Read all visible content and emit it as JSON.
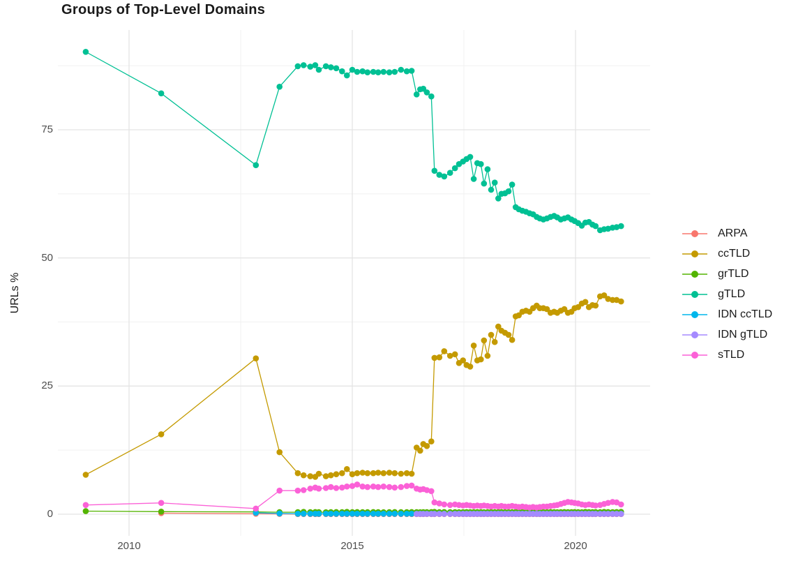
{
  "title": "Groups of Top-Level Domains",
  "axes": {
    "x": {
      "ticks": [
        {
          "value": 2010,
          "label": "2010"
        },
        {
          "value": 2015,
          "label": "2015"
        },
        {
          "value": 2020,
          "label": "2020"
        }
      ],
      "minor": [
        2012.5,
        2017.5
      ]
    },
    "y": {
      "label": "URLs %",
      "ticks": [
        {
          "value": 0,
          "label": "0"
        },
        {
          "value": 25,
          "label": "25"
        },
        {
          "value": 50,
          "label": "50"
        },
        {
          "value": 75,
          "label": "75"
        }
      ],
      "minor": [
        12.5,
        37.5,
        62.5,
        87.5
      ]
    }
  },
  "style": {
    "grid_major": "#e4e4e4",
    "grid_minor": "#f1f1f1",
    "tick_text": "#4d4d4d",
    "title_text": "#1a1a1a"
  },
  "chart_data": {
    "type": "line",
    "title": "Groups of Top-Level Domains",
    "xlabel": "",
    "ylabel": "URLs %",
    "xlim": [
      2008.4,
      2021.7
    ],
    "ylim": [
      0,
      94
    ],
    "grid": true,
    "legend_position": "right",
    "x_dense": [
      2013.78,
      2013.91,
      2014.06,
      2014.17,
      2014.25,
      2014.41,
      2014.52,
      2014.64,
      2014.77,
      2014.88,
      2015.0,
      2015.11,
      2015.23,
      2015.34,
      2015.47,
      2015.58,
      2015.7,
      2015.83,
      2015.95,
      2016.09,
      2016.22,
      2016.33,
      2016.44,
      2016.52,
      2016.59,
      2016.67,
      2016.77,
      2016.84,
      2016.95,
      2017.06,
      2017.19,
      2017.3,
      2017.39,
      2017.48,
      2017.56,
      2017.64,
      2017.72,
      2017.8,
      2017.88,
      2017.95,
      2018.03,
      2018.11,
      2018.19,
      2018.27,
      2018.34,
      2018.42,
      2018.5,
      2018.58,
      2018.66,
      2018.73,
      2018.81,
      2018.89,
      2018.97,
      2019.05,
      2019.13,
      2019.2,
      2019.28,
      2019.36,
      2019.44,
      2019.52,
      2019.59,
      2019.67,
      2019.75,
      2019.83,
      2019.91,
      2019.98,
      2020.06,
      2020.14,
      2020.22,
      2020.3,
      2020.38,
      2020.45,
      2020.55,
      2020.64,
      2020.73,
      2020.83,
      2020.92,
      2021.02
    ],
    "series": [
      {
        "name": "ARPA",
        "color": "#F8766D",
        "dense_from": 0,
        "early": [
          [
            2010.72,
            0.2
          ],
          [
            2012.84,
            0.1
          ],
          [
            2013.37,
            0.05
          ]
        ],
        "dense": [
          0.03,
          0.03,
          0.03,
          0.03,
          0.03,
          0.03,
          0.03,
          0.03,
          0.03,
          0.03,
          0.03,
          0.03,
          0.03,
          0.03,
          0.03,
          0.03,
          0.03,
          0.03,
          0.03,
          0.03,
          0.03,
          0.03,
          0.03,
          0.03,
          0.03,
          0.03,
          0.03,
          0.03,
          0.03,
          0.03,
          0.03,
          0.03,
          0.03,
          0.03,
          0.03,
          0.03,
          0.03,
          0.03,
          0.03,
          0.03,
          0.03,
          0.03,
          0.03,
          0.03,
          0.03,
          0.03,
          0.03,
          0.03,
          0.03,
          0.03,
          0.03,
          0.03,
          0.03,
          0.03,
          0.03,
          0.03,
          0.03,
          0.03,
          0.03,
          0.03,
          0.03,
          0.03,
          0.03,
          0.03,
          0.03,
          0.03,
          0.03,
          0.03,
          0.03,
          0.03,
          0.03,
          0.03,
          0.03,
          0.03,
          0.03,
          0.03,
          0.03,
          0.03
        ]
      },
      {
        "name": "ccTLD",
        "color": "#C49A00",
        "dense_from": 0,
        "early": [
          [
            2009.03,
            7.7
          ],
          [
            2010.72,
            15.6
          ],
          [
            2012.84,
            30.4
          ],
          [
            2013.37,
            12.1
          ]
        ],
        "dense": [
          8.0,
          7.6,
          7.4,
          7.3,
          7.9,
          7.4,
          7.6,
          7.8,
          8.0,
          8.8,
          7.8,
          8.0,
          8.1,
          8.0,
          8.0,
          8.1,
          8.0,
          8.1,
          8.0,
          7.9,
          8.0,
          7.9,
          13.0,
          12.4,
          13.7,
          13.3,
          14.2,
          30.5,
          30.6,
          31.8,
          30.9,
          31.2,
          29.5,
          30.0,
          29.1,
          28.8,
          32.9,
          30.0,
          30.2,
          33.9,
          30.9,
          35.0,
          33.6,
          36.6,
          35.8,
          35.4,
          35.0,
          34.0,
          38.6,
          38.8,
          39.5,
          39.7,
          39.5,
          40.2,
          40.7,
          40.2,
          40.2,
          40.0,
          39.3,
          39.5,
          39.3,
          39.7,
          40.0,
          39.3,
          39.5,
          40.2,
          40.4,
          41.1,
          41.4,
          40.4,
          40.8,
          40.7,
          42.5,
          42.7,
          42.0,
          41.8,
          41.8,
          41.5
        ]
      },
      {
        "name": "grTLD",
        "color": "#53B400",
        "dense_from": 0,
        "early": [
          [
            2009.03,
            0.6
          ],
          [
            2010.72,
            0.5
          ],
          [
            2012.84,
            0.45
          ],
          [
            2013.37,
            0.4
          ]
        ],
        "dense": [
          0.4,
          0.45,
          0.4,
          0.42,
          0.4,
          0.38,
          0.4,
          0.42,
          0.4,
          0.45,
          0.4,
          0.42,
          0.4,
          0.4,
          0.42,
          0.4,
          0.38,
          0.4,
          0.42,
          0.4,
          0.4,
          0.42,
          0.4,
          0.38,
          0.4,
          0.4,
          0.42,
          0.45,
          0.4,
          0.42,
          0.4,
          0.4,
          0.38,
          0.4,
          0.42,
          0.4,
          0.4,
          0.42,
          0.4,
          0.38,
          0.4,
          0.42,
          0.4,
          0.4,
          0.42,
          0.4,
          0.38,
          0.4,
          0.42,
          0.4,
          0.4,
          0.42,
          0.4,
          0.38,
          0.4,
          0.42,
          0.4,
          0.4,
          0.42,
          0.4,
          0.38,
          0.4,
          0.42,
          0.4,
          0.4,
          0.42,
          0.4,
          0.38,
          0.45,
          0.42,
          0.4,
          0.42,
          0.4,
          0.45,
          0.42,
          0.4,
          0.42,
          0.45
        ]
      },
      {
        "name": "gTLD",
        "color": "#00C094",
        "dense_from": 0,
        "early": [
          [
            2009.03,
            90.2
          ],
          [
            2010.72,
            82.1
          ],
          [
            2012.84,
            68.1
          ],
          [
            2013.37,
            83.4
          ]
        ],
        "dense": [
          87.4,
          87.6,
          87.3,
          87.6,
          86.7,
          87.4,
          87.2,
          87.0,
          86.4,
          85.6,
          86.7,
          86.3,
          86.4,
          86.2,
          86.3,
          86.2,
          86.3,
          86.2,
          86.3,
          86.7,
          86.4,
          86.5,
          81.9,
          82.9,
          83.0,
          82.3,
          81.5,
          67.0,
          66.2,
          65.9,
          66.6,
          67.5,
          68.3,
          68.8,
          69.3,
          69.7,
          65.4,
          68.5,
          68.3,
          64.5,
          67.3,
          63.3,
          64.7,
          61.6,
          62.5,
          62.6,
          63.0,
          64.3,
          59.9,
          59.5,
          59.2,
          59.0,
          58.7,
          58.5,
          58.0,
          57.7,
          57.5,
          57.7,
          58.0,
          58.2,
          57.9,
          57.5,
          57.7,
          57.9,
          57.5,
          57.2,
          56.8,
          56.3,
          56.9,
          57.0,
          56.5,
          56.2,
          55.4,
          55.6,
          55.7,
          55.9,
          56.0,
          56.2
        ]
      },
      {
        "name": "IDN ccTLD",
        "color": "#00B6EB",
        "dense_from": 0,
        "early": [
          [
            2012.84,
            0.27
          ],
          [
            2013.37,
            0.15
          ]
        ],
        "dense": [
          0.1,
          0.1,
          0.1,
          0.1,
          0.1,
          0.1,
          0.1,
          0.1,
          0.1,
          0.1,
          0.1,
          0.1,
          0.1,
          0.1,
          0.1,
          0.1,
          0.1,
          0.1,
          0.1,
          0.1,
          0.1,
          0.1,
          0.1,
          0.1,
          0.1,
          0.1,
          0.1,
          0.1,
          0.1,
          0.1,
          0.1,
          0.1,
          0.1,
          0.1,
          0.1,
          0.1,
          0.1,
          0.1,
          0.1,
          0.1,
          0.1,
          0.1,
          0.1,
          0.1,
          0.1,
          0.1,
          0.1,
          0.1,
          0.1,
          0.1,
          0.1,
          0.1,
          0.1,
          0.1,
          0.1,
          0.1,
          0.1,
          0.1,
          0.1,
          0.1,
          0.1,
          0.1,
          0.1,
          0.1,
          0.1,
          0.1,
          0.1,
          0.1,
          0.1,
          0.1,
          0.1,
          0.1,
          0.1,
          0.1,
          0.1,
          0.1,
          0.1,
          0.1
        ]
      },
      {
        "name": "IDN gTLD",
        "color": "#A58AFF",
        "dense_from": 22,
        "early": [],
        "dense": [
          0.05,
          0.05,
          0.05,
          0.05,
          0.05,
          0.05,
          0.05,
          0.05,
          0.05,
          0.05,
          0.05,
          0.05,
          0.05,
          0.05,
          0.05,
          0.05,
          0.05,
          0.05,
          0.05,
          0.05,
          0.05,
          0.05,
          0.05,
          0.05,
          0.05,
          0.05,
          0.05,
          0.05,
          0.05,
          0.05,
          0.05,
          0.05,
          0.05,
          0.05,
          0.05,
          0.05,
          0.05,
          0.05,
          0.05,
          0.05,
          0.05,
          0.05,
          0.05,
          0.05,
          0.05,
          0.05,
          0.05,
          0.05,
          0.05,
          0.05,
          0.05,
          0.05,
          0.05,
          0.05,
          0.05,
          0.05
        ]
      },
      {
        "name": "sTLD",
        "color": "#FB61D7",
        "dense_from": 0,
        "early": [
          [
            2009.03,
            1.8
          ],
          [
            2010.72,
            2.2
          ],
          [
            2012.84,
            1.1
          ],
          [
            2013.37,
            4.6
          ]
        ],
        "dense": [
          4.6,
          4.7,
          5.0,
          5.2,
          5.0,
          5.1,
          5.3,
          5.1,
          5.2,
          5.4,
          5.5,
          5.8,
          5.4,
          5.3,
          5.4,
          5.3,
          5.4,
          5.3,
          5.2,
          5.3,
          5.5,
          5.6,
          5.0,
          4.8,
          4.9,
          4.7,
          4.5,
          2.3,
          2.1,
          1.9,
          1.8,
          1.9,
          1.8,
          1.7,
          1.8,
          1.7,
          1.6,
          1.7,
          1.6,
          1.7,
          1.6,
          1.5,
          1.6,
          1.5,
          1.6,
          1.5,
          1.5,
          1.6,
          1.5,
          1.4,
          1.5,
          1.4,
          1.3,
          1.4,
          1.3,
          1.4,
          1.5,
          1.5,
          1.6,
          1.7,
          1.8,
          2.0,
          2.2,
          2.4,
          2.3,
          2.2,
          2.1,
          1.9,
          1.8,
          1.9,
          1.8,
          1.7,
          1.8,
          2.0,
          2.2,
          2.4,
          2.3,
          1.9
        ]
      }
    ]
  }
}
